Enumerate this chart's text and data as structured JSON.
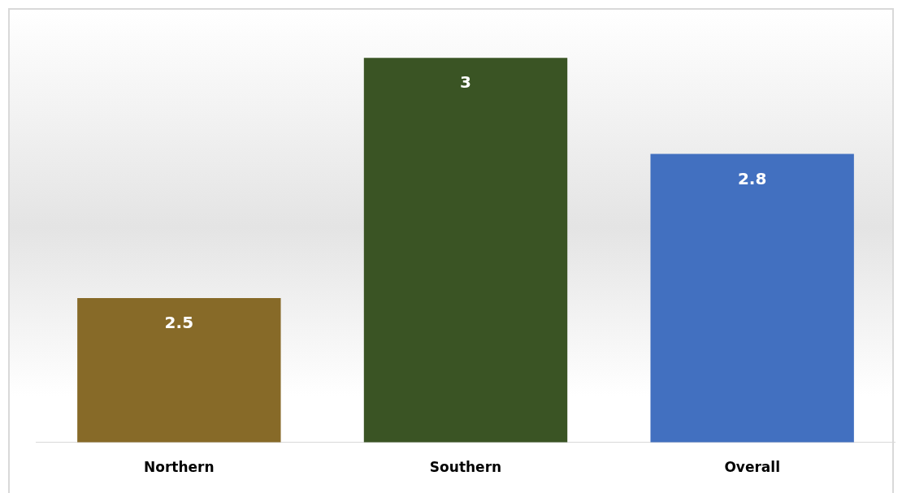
{
  "chart_data": {
    "type": "bar",
    "categories": [
      "Northern",
      "Southern",
      "Overall"
    ],
    "values": [
      2.5,
      3,
      2.8
    ],
    "colors": [
      "#876a28",
      "#3a5424",
      "#4270c0"
    ],
    "ylim": [
      2.2,
      3.1
    ],
    "data_labels": true,
    "grid": false,
    "legend": false
  }
}
